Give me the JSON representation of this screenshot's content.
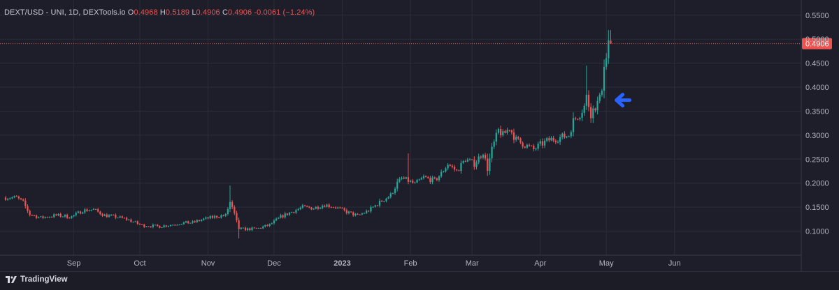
{
  "legend": {
    "symbol": "DEXT/USD - UNI, 1D, DEXTools.io",
    "open_label": "O",
    "open": "0.4968",
    "high_label": "H",
    "high": "0.5189",
    "low_label": "L",
    "low": "0.4906",
    "close_label": "C",
    "close": "0.4906",
    "change": "-0.0061 (−1.24%)"
  },
  "footer": {
    "brand": "TradingView"
  },
  "colors": {
    "background": "#1e1e2a",
    "grid": "#2a2d3a",
    "up": "#26a69a",
    "down": "#ef5350",
    "arrow": "#2962ff",
    "price_label_bg": "#ef5350"
  },
  "chart_data": {
    "type": "candlestick",
    "title": "DEXT/USD - UNI, 1D, DEXTools.io",
    "xlabel": "",
    "ylabel": "",
    "ylim": [
      0.05,
      0.57
    ],
    "grid": true,
    "price_axis_side": "right",
    "yticks": [
      "0.1000",
      "0.1500",
      "0.2000",
      "0.2500",
      "0.3000",
      "0.3500",
      "0.4000",
      "0.4500",
      "0.5000",
      "0.5500"
    ],
    "last_price": 0.4906,
    "last_price_label": "0.4906",
    "x_start_day": 0,
    "x_end_day": 360,
    "month_ticks": [
      {
        "label": "Sep",
        "day": 31
      },
      {
        "label": "Oct",
        "day": 61
      },
      {
        "label": "Nov",
        "day": 92
      },
      {
        "label": "Dec",
        "day": 122
      },
      {
        "label": "2023",
        "day": 153
      },
      {
        "label": "Feb",
        "day": 184
      },
      {
        "label": "Mar",
        "day": 212
      },
      {
        "label": "Apr",
        "day": 243
      },
      {
        "label": "May",
        "day": 273
      },
      {
        "label": "Jun",
        "day": 304
      }
    ],
    "anchor_closes": [
      [
        0,
        0.17
      ],
      [
        5,
        0.17
      ],
      [
        8,
        0.16
      ],
      [
        11,
        0.135
      ],
      [
        16,
        0.128
      ],
      [
        23,
        0.133
      ],
      [
        30,
        0.13
      ],
      [
        35,
        0.143
      ],
      [
        40,
        0.145
      ],
      [
        45,
        0.133
      ],
      [
        50,
        0.13
      ],
      [
        55,
        0.125
      ],
      [
        62,
        0.112
      ],
      [
        70,
        0.11
      ],
      [
        75,
        0.113
      ],
      [
        80,
        0.117
      ],
      [
        85,
        0.118
      ],
      [
        90,
        0.125
      ],
      [
        95,
        0.13
      ],
      [
        100,
        0.133
      ],
      [
        102,
        0.16
      ],
      [
        104,
        0.135
      ],
      [
        106,
        0.105
      ],
      [
        110,
        0.104
      ],
      [
        115,
        0.106
      ],
      [
        120,
        0.113
      ],
      [
        125,
        0.13
      ],
      [
        130,
        0.14
      ],
      [
        135,
        0.15
      ],
      [
        140,
        0.148
      ],
      [
        145,
        0.155
      ],
      [
        150,
        0.15
      ],
      [
        155,
        0.14
      ],
      [
        160,
        0.132
      ],
      [
        165,
        0.143
      ],
      [
        170,
        0.16
      ],
      [
        175,
        0.175
      ],
      [
        178,
        0.2
      ],
      [
        180,
        0.21
      ],
      [
        183,
        0.205
      ],
      [
        186,
        0.198
      ],
      [
        190,
        0.212
      ],
      [
        195,
        0.205
      ],
      [
        198,
        0.22
      ],
      [
        201,
        0.24
      ],
      [
        205,
        0.225
      ],
      [
        209,
        0.25
      ],
      [
        213,
        0.24
      ],
      [
        217,
        0.265
      ],
      [
        219,
        0.23
      ],
      [
        221,
        0.27
      ],
      [
        224,
        0.31
      ],
      [
        226,
        0.3
      ],
      [
        229,
        0.315
      ],
      [
        232,
        0.29
      ],
      [
        236,
        0.28
      ],
      [
        240,
        0.27
      ],
      [
        243,
        0.28
      ],
      [
        247,
        0.29
      ],
      [
        252,
        0.295
      ],
      [
        256,
        0.3
      ],
      [
        258,
        0.33
      ],
      [
        261,
        0.345
      ],
      [
        263,
        0.36
      ],
      [
        264,
        0.38
      ],
      [
        266,
        0.345
      ],
      [
        268,
        0.36
      ],
      [
        270,
        0.375
      ],
      [
        271,
        0.4
      ],
      [
        272,
        0.45
      ],
      [
        273,
        0.46
      ],
      [
        274,
        0.497
      ],
      [
        275,
        0.4906
      ]
    ],
    "spikes": [
      {
        "day": 102,
        "high": 0.195
      },
      {
        "day": 106,
        "low": 0.085
      },
      {
        "day": 183,
        "high": 0.262
      },
      {
        "day": 264,
        "high": 0.445
      },
      {
        "day": 274,
        "high": 0.5189
      }
    ],
    "last_candle": {
      "open": 0.4968,
      "high": 0.5189,
      "low": 0.4906,
      "close": 0.4906
    },
    "annotation": {
      "type": "arrow",
      "direction": "left",
      "day": 276,
      "price": 0.373
    }
  }
}
